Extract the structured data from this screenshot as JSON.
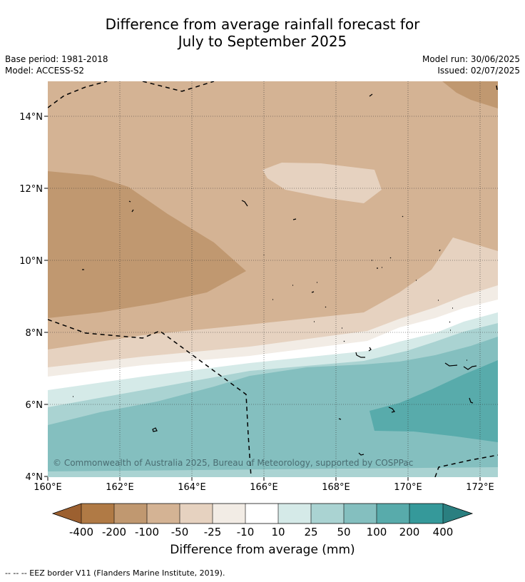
{
  "header": {
    "title_line1": "Difference from average rainfall forecast for",
    "title_line2": "July to September 2025",
    "base_period": "Base period: 1981-2018",
    "model": "Model: ACCESS-S2",
    "model_run": "Model run: 30/06/2025",
    "issued": "Issued: 02/07/2025"
  },
  "map": {
    "copyright": "© Commonwealth of Australia 2025, Bureau of Meteorology, supported by COSPPac",
    "lon_ticks": [
      "160°E",
      "162°E",
      "164°E",
      "166°E",
      "168°E",
      "170°E",
      "172°E"
    ],
    "lat_ticks": [
      "14°N",
      "12°N",
      "10°N",
      "8°N",
      "6°N",
      "4°N"
    ],
    "extent": {
      "lon": [
        160,
        172.5
      ],
      "lat": [
        4,
        15
      ]
    },
    "grid": "dotted"
  },
  "colorbar": {
    "labels": [
      "-400",
      "-200",
      "-100",
      "-50",
      "-25",
      "-10",
      "10",
      "25",
      "50",
      "100",
      "200",
      "400"
    ],
    "colors": [
      "#9c6030",
      "#b07a45",
      "#c09870",
      "#d4b394",
      "#e6d2c0",
      "#f2ece5",
      "#ffffff",
      "#d5eae8",
      "#aad3d2",
      "#84bfbf",
      "#58abab",
      "#35999a",
      "#2a7f80"
    ],
    "title": "Difference from average (mm)"
  },
  "footnote": "--  --  -- EEZ border V11 (Flanders Marine Institute, 2019)."
}
